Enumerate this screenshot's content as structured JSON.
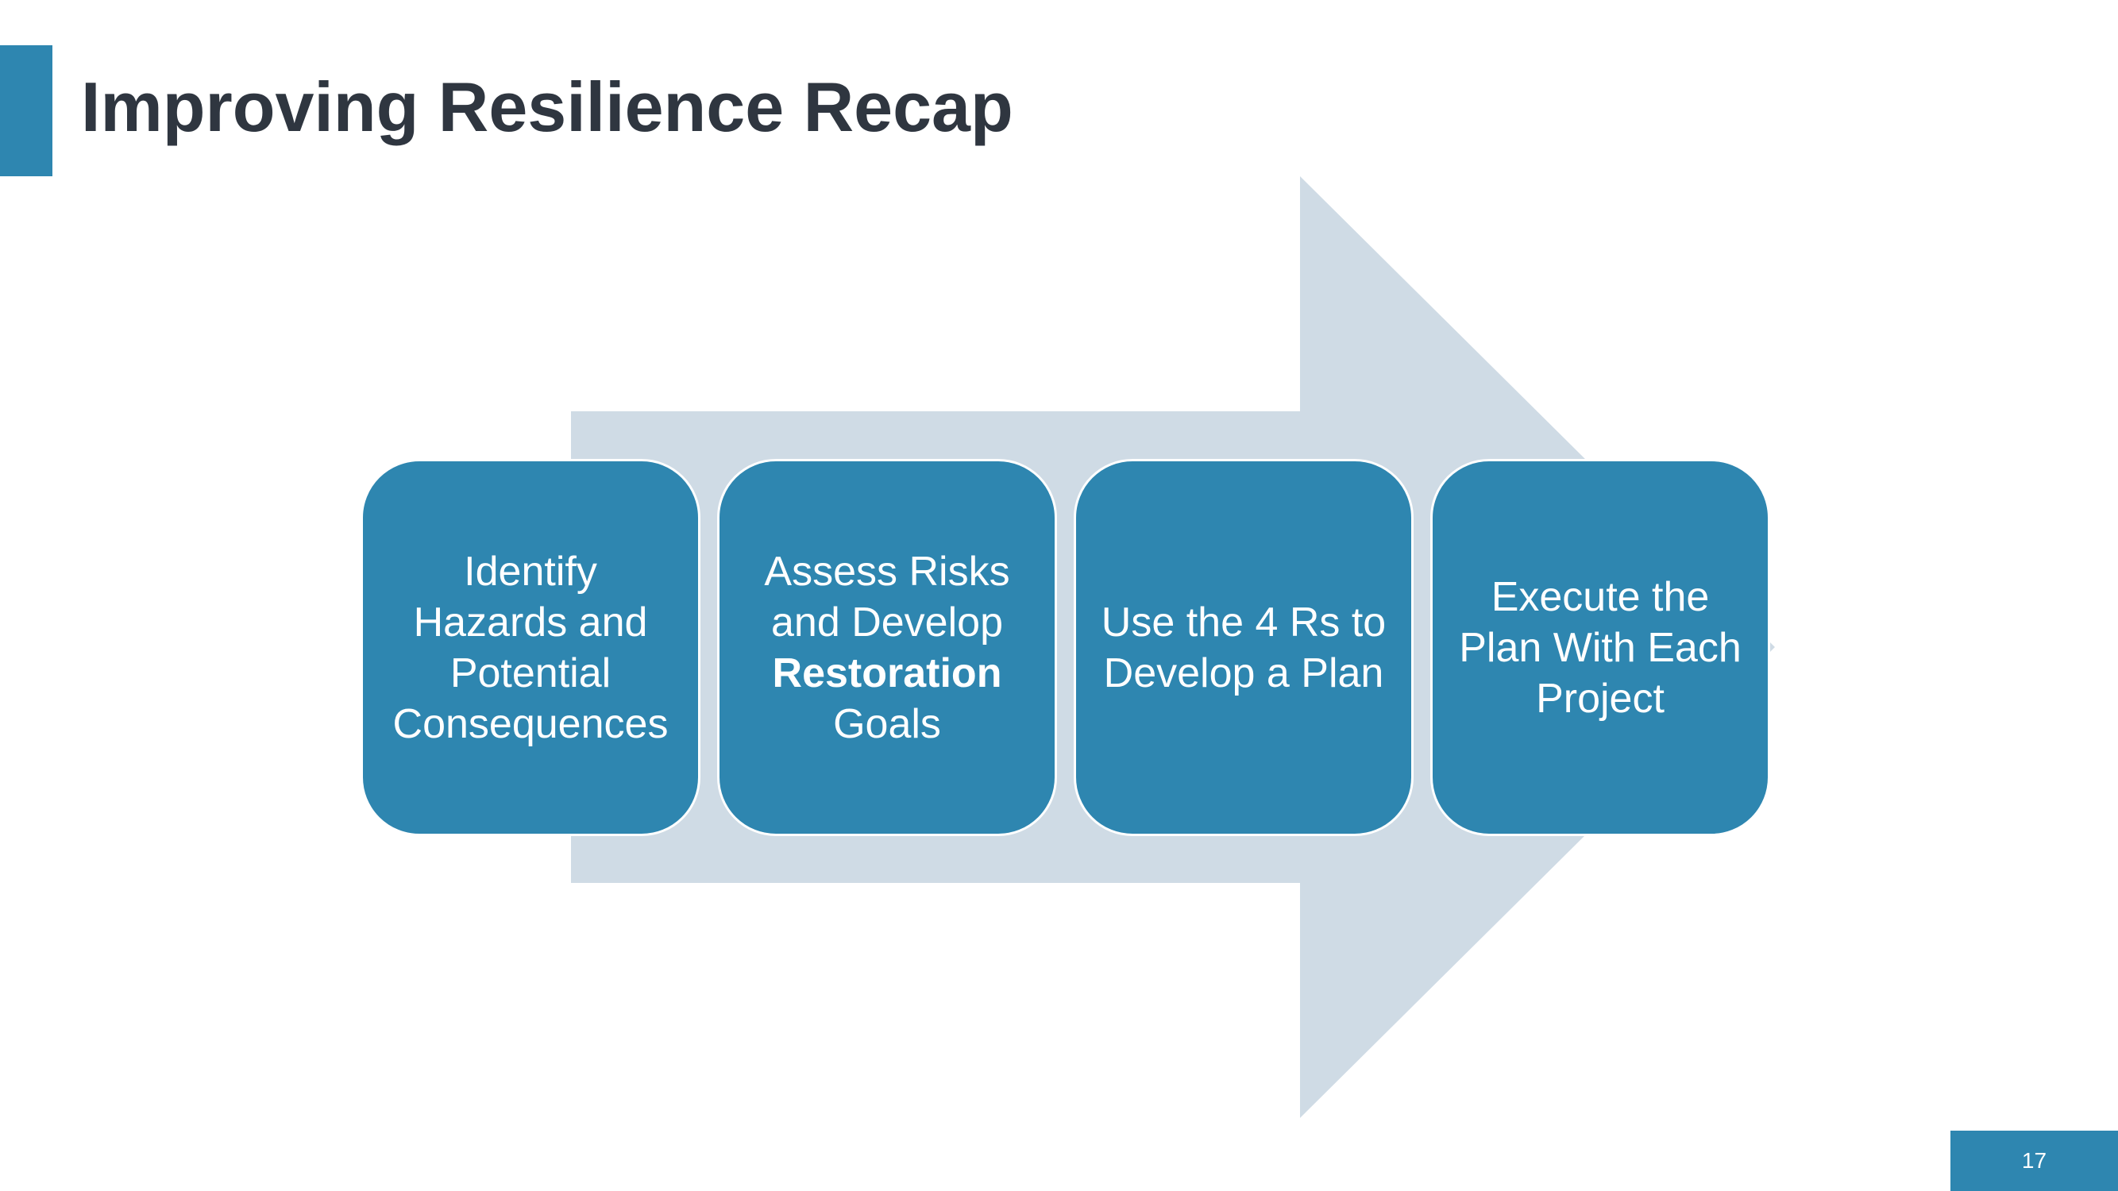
{
  "slide": {
    "title": "Improving Resilience Recap",
    "page_number": "17"
  },
  "steps": [
    {
      "text": "Identify Hazards and Potential Consequences"
    },
    {
      "text_before": "Assess Risks and Develop",
      "text_bold": "Restoration",
      "text_after": "Goals"
    },
    {
      "text": "Use the 4 Rs to Develop a Plan"
    },
    {
      "text": "Execute the Plan With Each Project"
    }
  ],
  "colors": {
    "accent": "#2e86b0",
    "title_text": "#2f3640",
    "arrow": "#cfdbe5",
    "step_text": "#ffffff"
  }
}
